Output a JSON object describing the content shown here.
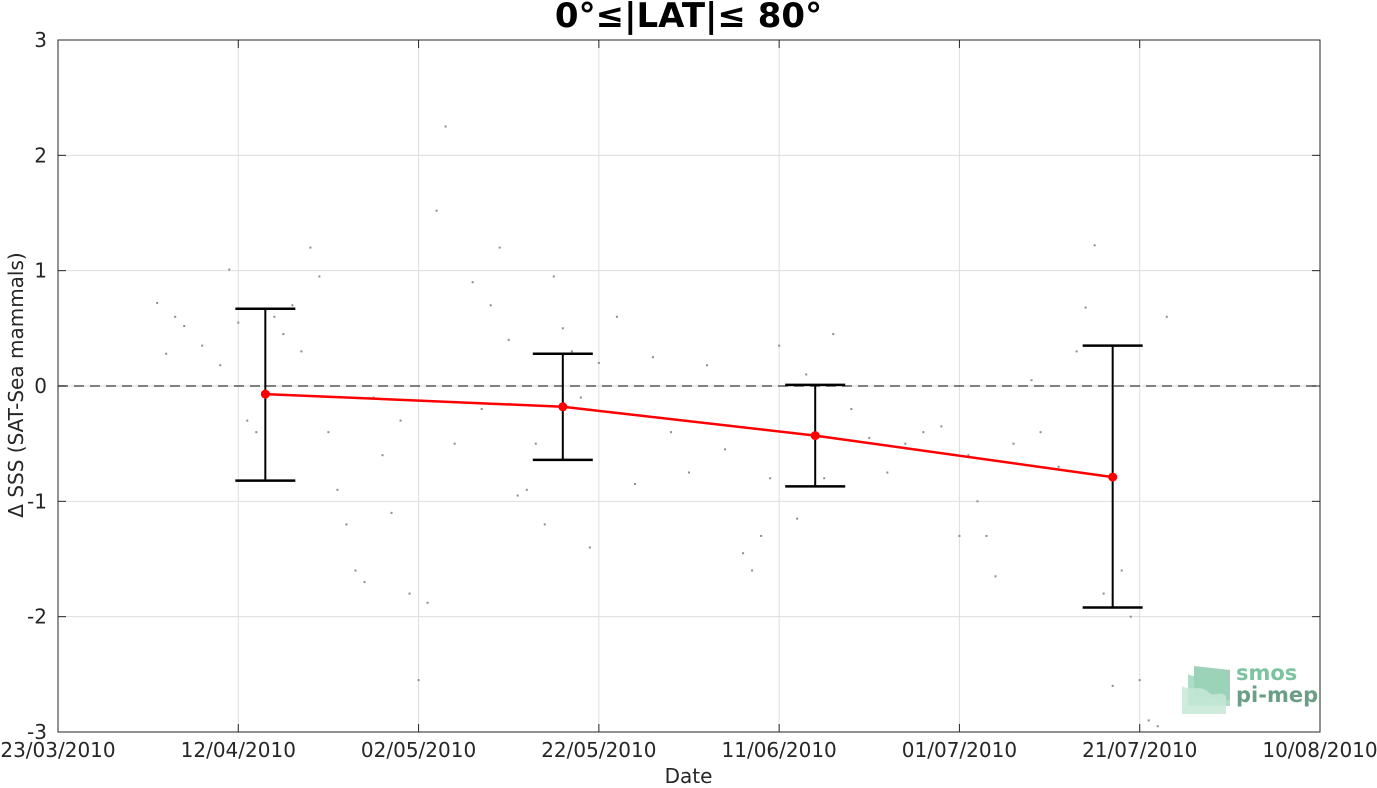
{
  "chart_data": {
    "type": "scatter",
    "title": "0°≤|LAT|≤ 80°",
    "xlabel": "Date",
    "ylabel": "Δ SSS (SAT-Sea mammals)",
    "x_ticks": [
      "23/03/2010",
      "12/04/2010",
      "02/05/2010",
      "22/05/2010",
      "11/06/2010",
      "01/07/2010",
      "21/07/2010",
      "10/08/2010"
    ],
    "xlim": [
      "23/03/2010",
      "10/08/2010"
    ],
    "ylim": [
      -3,
      3
    ],
    "y_ticks": [
      -3,
      -2,
      -1,
      0,
      1,
      2,
      3
    ],
    "grid": true,
    "reference_line": {
      "y": 0,
      "style": "dashed",
      "color": "#555555"
    },
    "series": [
      {
        "kind": "mean_with_errorbars",
        "color": "#ff0000",
        "errorbar_color": "#000000",
        "points": [
          {
            "x": "15/04/2010",
            "y": -0.07,
            "low": -0.82,
            "high": 0.67
          },
          {
            "x": "18/05/2010",
            "y": -0.18,
            "low": -0.64,
            "high": 0.28
          },
          {
            "x": "15/06/2010",
            "y": -0.43,
            "low": -0.87,
            "high": 0.01
          },
          {
            "x": "18/07/2010",
            "y": -0.79,
            "low": -1.92,
            "high": 0.35
          }
        ]
      },
      {
        "kind": "scatter_points",
        "color": "#8c8c8c",
        "points": [
          {
            "x": "03/04/2010",
            "y": 0.72
          },
          {
            "x": "04/04/2010",
            "y": 0.28
          },
          {
            "x": "05/04/2010",
            "y": 0.6
          },
          {
            "x": "06/04/2010",
            "y": 0.52
          },
          {
            "x": "08/04/2010",
            "y": 0.35
          },
          {
            "x": "10/04/2010",
            "y": 0.18
          },
          {
            "x": "11/04/2010",
            "y": 1.01
          },
          {
            "x": "12/04/2010",
            "y": 0.55
          },
          {
            "x": "13/04/2010",
            "y": -0.3
          },
          {
            "x": "14/04/2010",
            "y": -0.4
          },
          {
            "x": "16/04/2010",
            "y": 0.6
          },
          {
            "x": "17/04/2010",
            "y": 0.45
          },
          {
            "x": "18/04/2010",
            "y": 0.7
          },
          {
            "x": "19/04/2010",
            "y": 0.3
          },
          {
            "x": "20/04/2010",
            "y": 1.2
          },
          {
            "x": "21/04/2010",
            "y": 0.95
          },
          {
            "x": "22/04/2010",
            "y": -0.4
          },
          {
            "x": "23/04/2010",
            "y": -0.9
          },
          {
            "x": "24/04/2010",
            "y": -1.2
          },
          {
            "x": "25/04/2010",
            "y": -1.6
          },
          {
            "x": "26/04/2010",
            "y": -1.7
          },
          {
            "x": "27/04/2010",
            "y": -0.1
          },
          {
            "x": "28/04/2010",
            "y": -0.6
          },
          {
            "x": "29/04/2010",
            "y": -1.1
          },
          {
            "x": "30/04/2010",
            "y": -0.3
          },
          {
            "x": "01/05/2010",
            "y": -1.8
          },
          {
            "x": "02/05/2010",
            "y": -2.55
          },
          {
            "x": "03/05/2010",
            "y": -1.88
          },
          {
            "x": "04/05/2010",
            "y": 1.52
          },
          {
            "x": "05/05/2010",
            "y": 2.25
          },
          {
            "x": "06/05/2010",
            "y": -0.5
          },
          {
            "x": "08/05/2010",
            "y": 0.9
          },
          {
            "x": "09/05/2010",
            "y": -0.2
          },
          {
            "x": "10/05/2010",
            "y": 0.7
          },
          {
            "x": "11/05/2010",
            "y": 1.2
          },
          {
            "x": "12/05/2010",
            "y": 0.4
          },
          {
            "x": "13/05/2010",
            "y": -0.95
          },
          {
            "x": "14/05/2010",
            "y": -0.9
          },
          {
            "x": "15/05/2010",
            "y": -0.5
          },
          {
            "x": "16/05/2010",
            "y": -1.2
          },
          {
            "x": "17/05/2010",
            "y": 0.95
          },
          {
            "x": "18/05/2010",
            "y": 0.5
          },
          {
            "x": "19/05/2010",
            "y": 0.3
          },
          {
            "x": "20/05/2010",
            "y": -0.1
          },
          {
            "x": "21/05/2010",
            "y": -1.4
          },
          {
            "x": "22/05/2010",
            "y": 0.2
          },
          {
            "x": "24/05/2010",
            "y": 0.6
          },
          {
            "x": "26/05/2010",
            "y": -0.85
          },
          {
            "x": "28/05/2010",
            "y": 0.25
          },
          {
            "x": "30/05/2010",
            "y": -0.4
          },
          {
            "x": "01/06/2010",
            "y": -0.75
          },
          {
            "x": "03/06/2010",
            "y": 0.18
          },
          {
            "x": "05/06/2010",
            "y": -0.55
          },
          {
            "x": "07/06/2010",
            "y": -1.45
          },
          {
            "x": "08/06/2010",
            "y": -1.6
          },
          {
            "x": "09/06/2010",
            "y": -1.3
          },
          {
            "x": "10/06/2010",
            "y": -0.8
          },
          {
            "x": "11/06/2010",
            "y": 0.35
          },
          {
            "x": "13/06/2010",
            "y": -1.15
          },
          {
            "x": "14/06/2010",
            "y": 0.1
          },
          {
            "x": "16/06/2010",
            "y": -0.8
          },
          {
            "x": "17/06/2010",
            "y": 0.45
          },
          {
            "x": "19/06/2010",
            "y": -0.2
          },
          {
            "x": "21/06/2010",
            "y": -0.45
          },
          {
            "x": "23/06/2010",
            "y": -0.75
          },
          {
            "x": "25/06/2010",
            "y": -0.5
          },
          {
            "x": "27/06/2010",
            "y": -0.4
          },
          {
            "x": "29/06/2010",
            "y": -0.35
          },
          {
            "x": "01/07/2010",
            "y": -1.3
          },
          {
            "x": "02/07/2010",
            "y": -0.6
          },
          {
            "x": "03/07/2010",
            "y": -1.0
          },
          {
            "x": "04/07/2010",
            "y": -1.3
          },
          {
            "x": "05/07/2010",
            "y": -1.65
          },
          {
            "x": "07/07/2010",
            "y": -0.5
          },
          {
            "x": "09/07/2010",
            "y": 0.05
          },
          {
            "x": "10/07/2010",
            "y": -0.4
          },
          {
            "x": "12/07/2010",
            "y": -0.7
          },
          {
            "x": "14/07/2010",
            "y": 0.3
          },
          {
            "x": "15/07/2010",
            "y": 0.68
          },
          {
            "x": "16/07/2010",
            "y": 1.22
          },
          {
            "x": "17/07/2010",
            "y": -1.8
          },
          {
            "x": "18/07/2010",
            "y": -2.6
          },
          {
            "x": "19/07/2010",
            "y": -1.6
          },
          {
            "x": "20/07/2010",
            "y": -2.0
          },
          {
            "x": "21/07/2010",
            "y": -2.55
          },
          {
            "x": "22/07/2010",
            "y": -2.9
          },
          {
            "x": "23/07/2010",
            "y": -2.95
          },
          {
            "x": "24/07/2010",
            "y": 0.6
          }
        ]
      }
    ]
  },
  "logo": {
    "line1": "smos",
    "line2": "pi-mep"
  }
}
